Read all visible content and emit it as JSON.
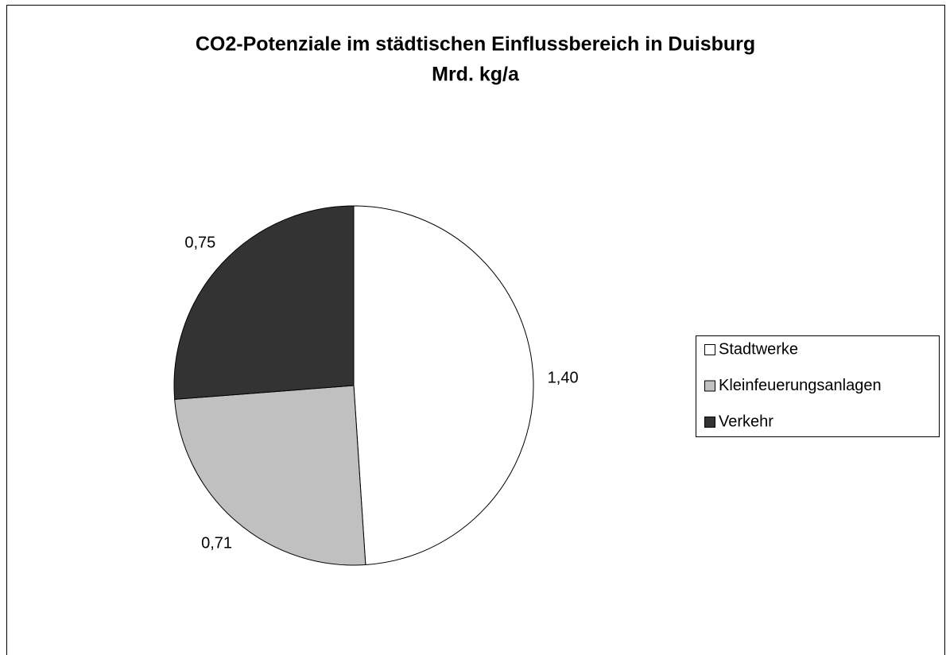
{
  "chart_data": {
    "type": "pie",
    "title": "CO2-Potenziale im städtischen Einflussbereich in Duisburg",
    "subtitle": "Mrd. kg/a",
    "categories": [
      "Stadtwerke",
      "Kleinfeuerungsanlagen",
      "Verkehr"
    ],
    "values": [
      1.4,
      0.71,
      0.75
    ],
    "value_labels": [
      "1,40",
      "0,71",
      "0,75"
    ],
    "colors": [
      "#ffffff",
      "#c0c0c0",
      "#333333"
    ],
    "legend": "right"
  }
}
